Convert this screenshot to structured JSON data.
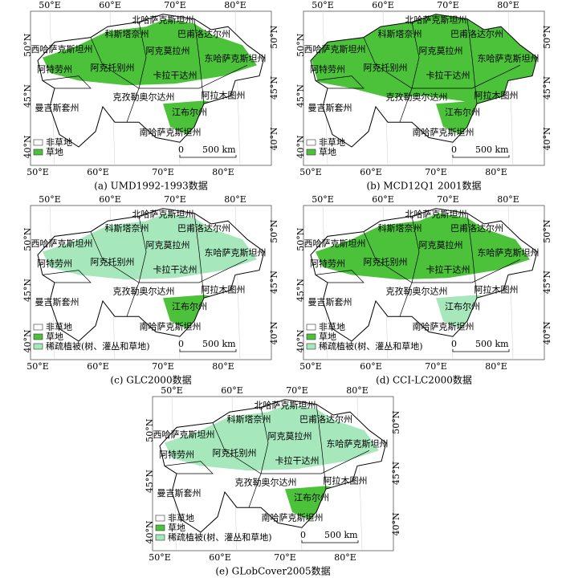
{
  "panels": [
    {
      "caption": "(a) UMD1992-1993数据",
      "lon_top": [
        "50°E",
        "60°E",
        "70°E",
        "80°E"
      ],
      "lon_bottom": [
        "50°E",
        "60°E",
        "70°E",
        "80°E"
      ],
      "lat_left": [
        "50°N",
        "45°N",
        "40°N"
      ],
      "lat_right": [
        "50°N",
        "45°N",
        "40°N"
      ],
      "regions": [
        "北哈萨克斯坦州",
        "科斯塔奈州",
        "巴甫洛达尔州",
        "西哈萨克斯坦州",
        "阿克莫拉州",
        "东哈萨克斯坦州",
        "阿特劳州",
        "阿克托别州",
        "卡拉干达州",
        "克孜勒奥尔达州",
        "阿拉木图州",
        "曼吉斯套州",
        "江布尔州",
        "南哈萨克斯坦州"
      ],
      "legend": [
        {
          "label": "非草地",
          "color": "#ffffff"
        },
        {
          "label": "草地",
          "color": "#4cc23a"
        }
      ],
      "scale": [
        "0",
        "500 km"
      ]
    },
    {
      "caption": "(b) MCD12Q1 2001数据",
      "lon_top": [
        "50°E",
        "60°E",
        "70°E",
        "80°E"
      ],
      "lon_bottom": [
        "50°E",
        "60°E",
        "70°E",
        "80°E"
      ],
      "lat_left": [
        "50°N",
        "45°N",
        "40°N"
      ],
      "lat_right": [
        "50°N",
        "45°N",
        "40°N"
      ],
      "regions": [
        "北哈萨克斯坦州",
        "科斯塔奈州",
        "巴甫洛达尔州",
        "西哈萨克斯坦州",
        "阿克莫拉州",
        "东哈萨克斯坦州",
        "阿特劳州",
        "阿克托别州",
        "卡拉干达州",
        "克孜勒奥尔达州",
        "阿拉木图州",
        "曼吉斯套州",
        "江布尔州",
        "南哈萨克斯坦州"
      ],
      "legend": [
        {
          "label": "非草地",
          "color": "#ffffff"
        },
        {
          "label": "草地",
          "color": "#4cc23a"
        }
      ],
      "scale": [
        "0",
        "500 km"
      ]
    },
    {
      "caption": "(c) GLC2000数据",
      "lon_top": [
        "50°E",
        "60°E",
        "70°E",
        "80°E"
      ],
      "lon_bottom": [
        "50°E",
        "60°E",
        "70°E",
        "80°E"
      ],
      "lat_left": [
        "50°N",
        "45°N",
        "40°N"
      ],
      "lat_right": [
        "50°N",
        "45°N",
        "40°N"
      ],
      "regions": [
        "北哈萨克斯坦州",
        "科斯塔奈州",
        "巴甫洛达尔州",
        "西哈萨克斯坦州",
        "阿克莫拉州",
        "东哈萨克斯坦州",
        "阿特劳州",
        "阿克托别州",
        "卡拉干达州",
        "克孜勒奥尔达州",
        "阿拉木图州",
        "曼吉斯套州",
        "江布尔州",
        "南哈萨克斯坦州"
      ],
      "legend": [
        {
          "label": "非草地",
          "color": "#ffffff"
        },
        {
          "label": "草地",
          "color": "#4cc23a"
        },
        {
          "label": "稀疏植被(树、灌丛和草地)",
          "color": "#a6e8bc"
        }
      ],
      "scale": [
        "0",
        "500 km"
      ]
    },
    {
      "caption": "(d) CCI-LC2000数据",
      "lon_top": [
        "50°E",
        "60°E",
        "70°E",
        "80°E"
      ],
      "lon_bottom": [
        "50°E",
        "60°E",
        "70°E",
        "80°E"
      ],
      "lat_left": [
        "50°N",
        "45°N",
        "40°N"
      ],
      "lat_right": [
        "50°N",
        "45°N",
        "40°N"
      ],
      "regions": [
        "北哈萨克斯坦州",
        "科斯塔奈州",
        "巴甫洛达尔州",
        "西哈萨克斯坦州",
        "阿克莫拉州",
        "东哈萨克斯坦州",
        "阿特劳州",
        "阿克托别州",
        "卡拉干达州",
        "克孜勒奥尔达州",
        "阿拉木图州",
        "曼吉斯套州",
        "江布尔州",
        "南哈萨克斯坦州"
      ],
      "legend": [
        {
          "label": "非草地",
          "color": "#ffffff"
        },
        {
          "label": "草地",
          "color": "#4cc23a"
        },
        {
          "label": "稀疏植被(树、灌丛和草地)",
          "color": "#a6e8bc"
        }
      ],
      "scale": [
        "0",
        "500 km"
      ]
    },
    {
      "caption": "(e) GLobCover2005数据",
      "lon_top": [
        "50°E",
        "60°E",
        "70°E",
        "80°E"
      ],
      "lon_bottom": [
        "50°E",
        "60°E",
        "70°E",
        "80°E"
      ],
      "lat_left": [
        "50°N",
        "45°N",
        "40°N"
      ],
      "lat_right": [
        "50°N",
        "45°N",
        "40°N"
      ],
      "regions": [
        "北哈萨克斯坦州",
        "科斯塔奈州",
        "巴甫洛达尔州",
        "西哈萨克斯坦州",
        "阿克莫拉州",
        "东哈萨克斯坦州",
        "阿特劳州",
        "阿克托别州",
        "卡拉干达州",
        "克孜勒奥尔达州",
        "阿拉木图州",
        "曼吉斯套州",
        "江布尔州",
        "南哈萨克斯坦州"
      ],
      "legend": [
        {
          "label": "非草地",
          "color": "#ffffff"
        },
        {
          "label": "草地",
          "color": "#4cc23a"
        },
        {
          "label": "稀疏植被(树、灌丛和草地)",
          "color": "#a6e8bc"
        }
      ],
      "scale": [
        "0",
        "500 km"
      ]
    }
  ]
}
